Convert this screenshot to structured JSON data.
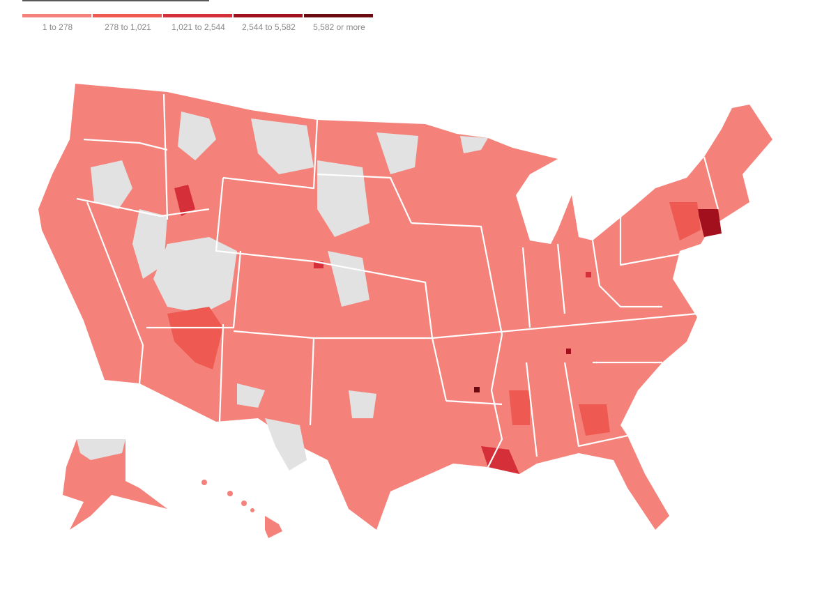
{
  "legend": {
    "items": [
      {
        "label": "1 to 278",
        "color": "#f4827a"
      },
      {
        "label": "278 to 1,021",
        "color": "#ee5a52"
      },
      {
        "label": "1,021 to 2,544",
        "color": "#d52f3a"
      },
      {
        "label": "2,544 to 5,582",
        "color": "#a3101d"
      },
      {
        "label": "5,582 or more",
        "color": "#6b0a10"
      }
    ]
  }
}
